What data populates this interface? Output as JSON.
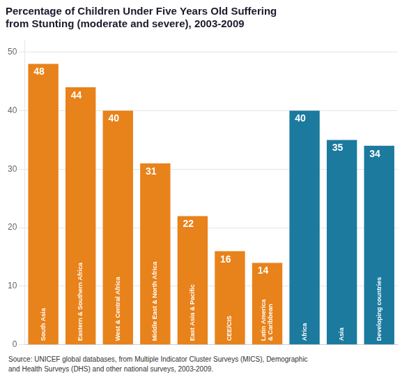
{
  "chart_data": {
    "type": "bar",
    "title": "Percentage of Children Under Five Years Old Suffering\nfrom Stunting (moderate and severe), 2003-2009",
    "categories": [
      "South Asia",
      "Eastern & Southern Africa",
      "West & Central Africa",
      "Middle East & North Africa",
      "East Asia & Pacific",
      "CEE/CIS",
      "Latin America\n& Caribbean",
      "Africa",
      "Asia",
      "Developing countries"
    ],
    "values": [
      48,
      44,
      40,
      31,
      22,
      16,
      14,
      40,
      35,
      34
    ],
    "colors": [
      "#E8821A",
      "#E8821A",
      "#E8821A",
      "#E8821A",
      "#E8821A",
      "#E8821A",
      "#E8821A",
      "#1B7A9E",
      "#1B7A9E",
      "#1B7A9E"
    ],
    "annotations": [
      "Source: UNICEF global databases, from Multiple Indicator Cluster Surveys (MICS), Demographic\nand Health Surveys (DHS) and other national surveys, 2003-2009."
    ],
    "ylim": [
      0,
      52
    ],
    "yticks": [
      0,
      10,
      20,
      30,
      40,
      50
    ],
    "grid": true,
    "data_labels": true,
    "tick_labels": "y"
  }
}
